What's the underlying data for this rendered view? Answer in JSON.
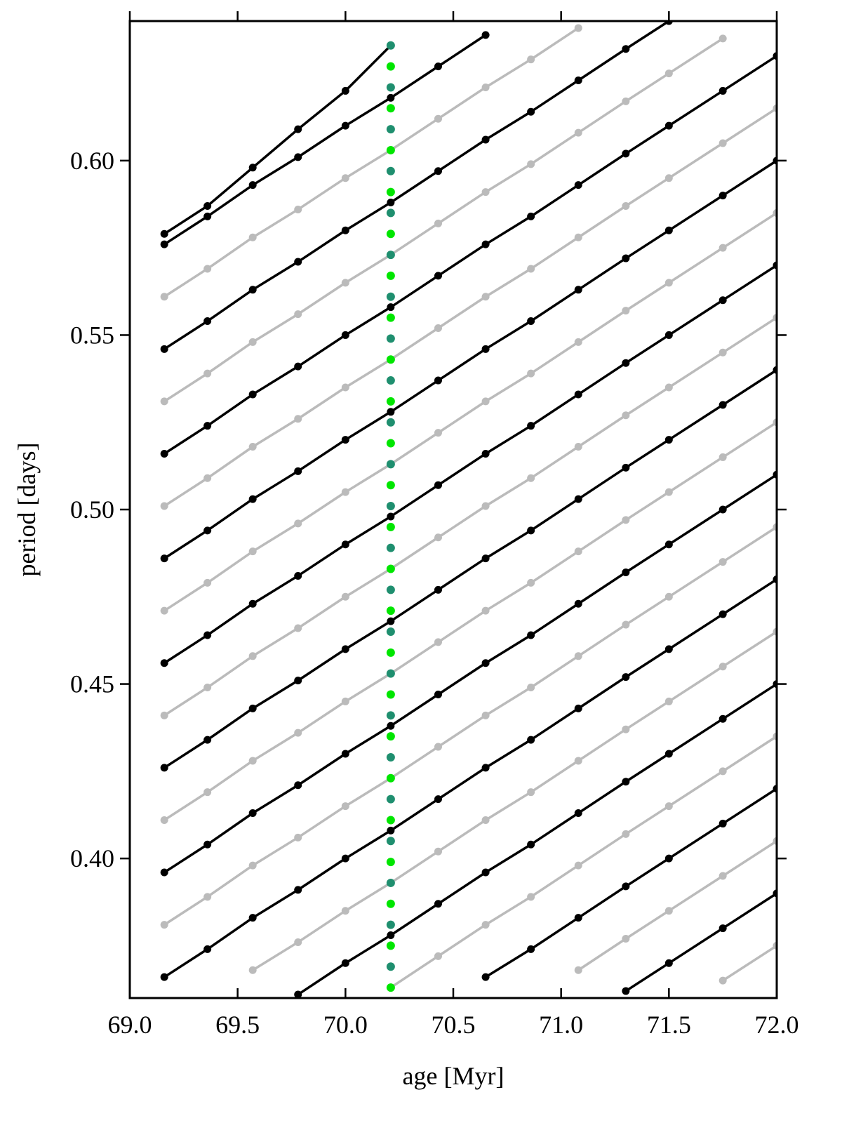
{
  "chart_data": {
    "type": "line",
    "xlabel": "age [Myr]",
    "ylabel": "period [days]",
    "x": [
      69.16,
      69.36,
      69.57,
      69.78,
      70.0,
      70.21,
      70.43,
      70.65,
      70.86,
      71.08,
      71.3,
      71.5,
      71.75,
      72.0
    ],
    "xlim": [
      69.0,
      72.0
    ],
    "xticks": [
      {
        "value": 69.0,
        "label": "69.0"
      },
      69.5,
      {
        "value": 70.0,
        "label": "70.0"
      },
      70.5,
      {
        "value": 71.0,
        "label": "71.0"
      },
      71.5,
      {
        "value": 72.0,
        "label": "72.0"
      }
    ],
    "ylim": [
      0.36,
      0.64
    ],
    "yticks": [
      {
        "value": 0.4,
        "label": "0.40"
      },
      0.45,
      {
        "value": 0.5,
        "label": "0.50"
      },
      0.55,
      {
        "value": 0.6,
        "label": "0.60"
      }
    ],
    "series": [
      {
        "color": "#bbbbbb",
        "values": [
          null,
          null,
          null,
          null,
          null,
          null,
          null,
          null,
          null,
          null,
          null,
          null,
          0.365,
          0.375
        ]
      },
      {
        "color": "#bbbbbb",
        "values": [
          null,
          null,
          null,
          null,
          null,
          null,
          null,
          null,
          null,
          0.368,
          0.377,
          0.385,
          0.395,
          0.405
        ]
      },
      {
        "color": "#bbbbbb",
        "values": [
          null,
          null,
          null,
          null,
          null,
          0.363,
          0.372,
          0.381,
          0.389,
          0.398,
          0.407,
          0.415,
          0.425,
          0.435
        ]
      },
      {
        "color": "#bbbbbb",
        "values": [
          null,
          null,
          0.368,
          0.376,
          0.385,
          0.393,
          0.402,
          0.411,
          0.419,
          0.428,
          0.437,
          0.445,
          0.455,
          0.465
        ]
      },
      {
        "color": "#bbbbbb",
        "values": [
          0.381,
          0.389,
          0.398,
          0.406,
          0.415,
          0.423,
          0.432,
          0.441,
          0.449,
          0.458,
          0.467,
          0.475,
          0.485,
          0.495
        ]
      },
      {
        "color": "#bbbbbb",
        "values": [
          0.411,
          0.419,
          0.428,
          0.436,
          0.445,
          0.453,
          0.462,
          0.471,
          0.479,
          0.488,
          0.497,
          0.505,
          0.515,
          0.525
        ]
      },
      {
        "color": "#bbbbbb",
        "values": [
          0.441,
          0.449,
          0.458,
          0.466,
          0.475,
          0.483,
          0.492,
          0.501,
          0.509,
          0.518,
          0.527,
          0.535,
          0.545,
          0.555
        ]
      },
      {
        "color": "#bbbbbb",
        "values": [
          0.471,
          0.479,
          0.488,
          0.496,
          0.505,
          0.513,
          0.522,
          0.531,
          0.539,
          0.548,
          0.557,
          0.565,
          0.575,
          0.585
        ]
      },
      {
        "color": "#bbbbbb",
        "values": [
          0.501,
          0.509,
          0.518,
          0.526,
          0.535,
          0.543,
          0.552,
          0.561,
          0.569,
          0.578,
          0.587,
          0.595,
          0.605,
          0.615
        ]
      },
      {
        "color": "#bbbbbb",
        "values": [
          0.531,
          0.539,
          0.548,
          0.556,
          0.565,
          0.573,
          0.582,
          0.591,
          0.599,
          0.608,
          0.617,
          0.625,
          0.635,
          null
        ]
      },
      {
        "color": "#bbbbbb",
        "values": [
          0.561,
          0.569,
          0.578,
          0.586,
          0.595,
          0.603,
          0.612,
          0.621,
          0.629,
          0.638,
          null,
          null,
          null,
          null
        ]
      },
      {
        "color": "#000000",
        "values": [
          null,
          null,
          null,
          null,
          null,
          null,
          null,
          null,
          null,
          null,
          0.362,
          0.37,
          0.38,
          0.39
        ]
      },
      {
        "color": "#000000",
        "values": [
          null,
          null,
          null,
          null,
          null,
          null,
          null,
          0.366,
          0.374,
          0.383,
          0.392,
          0.4,
          0.41,
          0.42
        ]
      },
      {
        "color": "#000000",
        "values": [
          null,
          null,
          null,
          0.361,
          0.37,
          0.378,
          0.387,
          0.396,
          0.404,
          0.413,
          0.422,
          0.43,
          0.44,
          0.45
        ]
      },
      {
        "color": "#000000",
        "values": [
          0.366,
          0.374,
          0.383,
          0.391,
          0.4,
          0.408,
          0.417,
          0.426,
          0.434,
          0.443,
          0.452,
          0.46,
          0.47,
          0.48
        ]
      },
      {
        "color": "#000000",
        "values": [
          0.396,
          0.404,
          0.413,
          0.421,
          0.43,
          0.438,
          0.447,
          0.456,
          0.464,
          0.473,
          0.482,
          0.49,
          0.5,
          0.51
        ]
      },
      {
        "color": "#000000",
        "values": [
          0.426,
          0.434,
          0.443,
          0.451,
          0.46,
          0.468,
          0.477,
          0.486,
          0.494,
          0.503,
          0.512,
          0.52,
          0.53,
          0.54
        ]
      },
      {
        "color": "#000000",
        "values": [
          0.456,
          0.464,
          0.473,
          0.481,
          0.49,
          0.498,
          0.507,
          0.516,
          0.524,
          0.533,
          0.542,
          0.55,
          0.56,
          0.57
        ]
      },
      {
        "color": "#000000",
        "values": [
          0.486,
          0.494,
          0.503,
          0.511,
          0.52,
          0.528,
          0.537,
          0.546,
          0.554,
          0.563,
          0.572,
          0.58,
          0.59,
          0.6
        ]
      },
      {
        "color": "#000000",
        "values": [
          0.516,
          0.524,
          0.533,
          0.541,
          0.55,
          0.558,
          0.567,
          0.576,
          0.584,
          0.593,
          0.602,
          0.61,
          0.62,
          0.63
        ]
      },
      {
        "color": "#000000",
        "values": [
          0.546,
          0.554,
          0.563,
          0.571,
          0.58,
          0.588,
          0.597,
          0.606,
          0.614,
          0.623,
          0.632,
          0.64,
          null,
          null
        ]
      },
      {
        "color": "#000000",
        "values": [
          0.576,
          0.584,
          0.593,
          0.601,
          0.61,
          0.618,
          0.627,
          0.636,
          null,
          null,
          null,
          null,
          null,
          null
        ]
      },
      {
        "color": "#000000",
        "values": [
          0.579,
          0.587,
          0.598,
          0.609,
          0.62,
          0.633,
          null,
          null,
          null,
          null,
          null,
          null,
          null,
          null
        ]
      }
    ],
    "highlight": {
      "type": "scatter",
      "colors": [
        "#00e600",
        "#1f8f6f"
      ],
      "x": [
        70.21,
        70.21,
        70.21,
        70.21,
        70.21,
        70.21,
        70.21,
        70.21,
        70.21,
        70.21,
        70.21,
        70.21,
        70.21,
        70.21,
        70.21,
        70.21,
        70.21,
        70.21,
        70.21,
        70.21,
        70.21,
        70.21,
        70.21,
        70.21,
        70.21,
        70.21,
        70.21,
        70.21,
        70.21,
        70.21,
        70.21,
        70.21,
        70.21,
        70.21,
        70.21,
        70.21,
        70.21,
        70.21,
        70.21,
        70.21,
        70.21,
        70.21,
        70.21,
        70.21,
        70.21,
        70.21
      ],
      "values": [
        0.363,
        0.369,
        0.375,
        0.381,
        0.387,
        0.393,
        0.399,
        0.405,
        0.411,
        0.417,
        0.423,
        0.429,
        0.435,
        0.441,
        0.447,
        0.453,
        0.459,
        0.465,
        0.471,
        0.477,
        0.483,
        0.489,
        0.495,
        0.501,
        0.507,
        0.513,
        0.519,
        0.525,
        0.531,
        0.537,
        0.543,
        0.549,
        0.555,
        0.561,
        0.567,
        0.573,
        0.579,
        0.585,
        0.591,
        0.597,
        0.603,
        0.609,
        0.615,
        0.621,
        0.627,
        0.633
      ]
    }
  }
}
